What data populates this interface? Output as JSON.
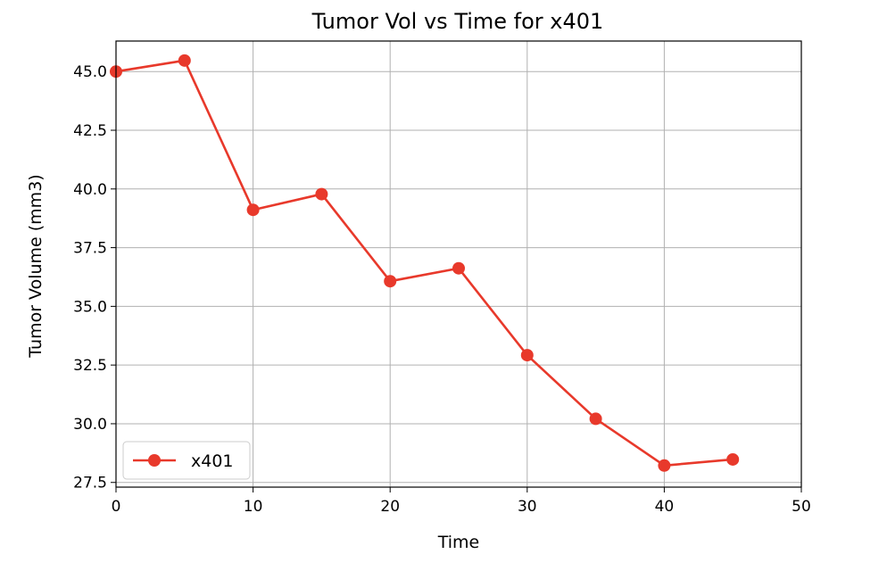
{
  "chart_data": {
    "type": "line",
    "title": "Tumor Vol vs Time for x401",
    "xlabel": "Time",
    "ylabel": "Tumor Volume (mm3)",
    "xlim": [
      0,
      50
    ],
    "ylim": [
      27.3,
      46.3
    ],
    "x_ticks": [
      0,
      10,
      20,
      30,
      40,
      50
    ],
    "y_ticks": [
      27.5,
      30.0,
      32.5,
      35.0,
      37.5,
      40.0,
      42.5,
      45.0
    ],
    "x_tick_labels": [
      "0",
      "10",
      "20",
      "30",
      "40",
      "50"
    ],
    "y_tick_labels": [
      "27.5",
      "30.0",
      "32.5",
      "35.0",
      "37.5",
      "40.0",
      "42.5",
      "45.0"
    ],
    "grid": true,
    "legend_position": "lower-left",
    "series": [
      {
        "name": "x401",
        "color": "#e8392b",
        "x": [
          0,
          5,
          10,
          15,
          20,
          25,
          30,
          35,
          40,
          45
        ],
        "values": [
          45.0,
          45.47,
          39.11,
          39.78,
          36.07,
          36.62,
          32.92,
          30.21,
          28.22,
          28.48
        ]
      }
    ]
  }
}
